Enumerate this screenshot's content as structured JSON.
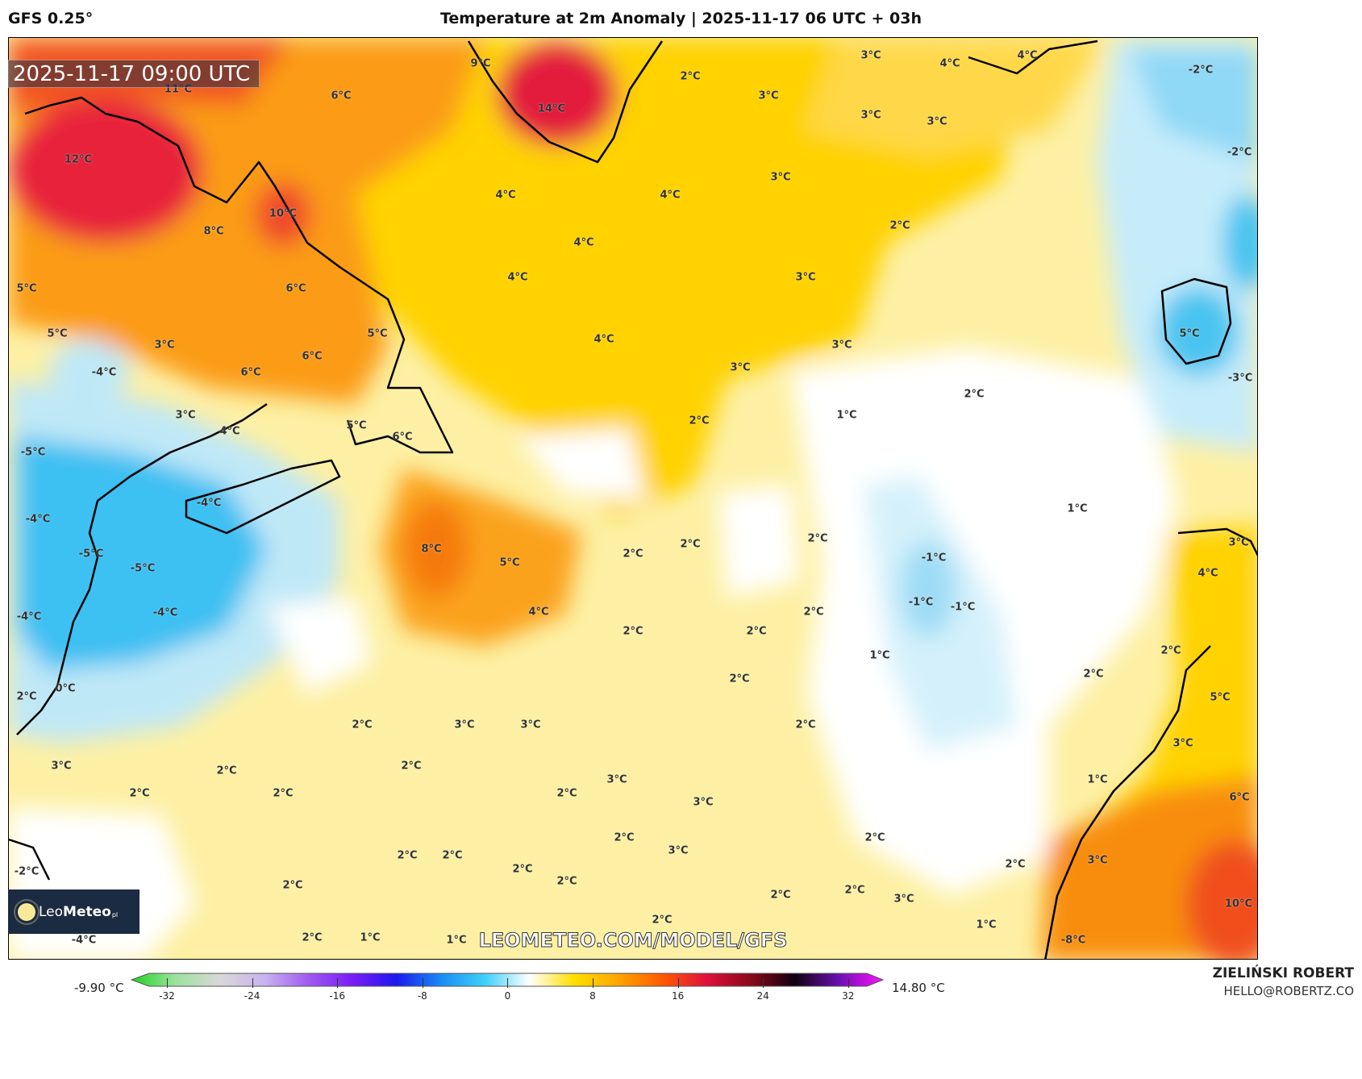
{
  "header": {
    "model": "GFS 0.25°",
    "title": "Temperature at 2m Anomaly | 2025-11-17 06 UTC + 03h"
  },
  "map": {
    "valid_time": "2025-11-17 09:00 UTC",
    "watermark": "LEOMETEO.COM/MODEL/GFS",
    "logo": {
      "name_light": "Leo",
      "name_bold": "Meteo",
      "suffix": "pl"
    },
    "contour_labels": [
      "11°C",
      "6°C",
      "12°C",
      "14°C",
      "9°C",
      "2°C",
      "3°C",
      "4°C",
      "4°C",
      "-2°C",
      "3°C",
      "3°C",
      "3°C",
      "-2°C",
      "3°C",
      "4°C",
      "4°C",
      "10°C",
      "8°C",
      "2°C",
      "4°C",
      "4°C",
      "6°C",
      "3°C",
      "5°C",
      "5°C",
      "5°C",
      "4°C",
      "3°C",
      "6°C",
      "3°C",
      "3°C",
      "-4°C",
      "6°C",
      "5°C",
      "-3°C",
      "2°C",
      "3°C",
      "1°C",
      "2°C",
      "4°C",
      "5°C",
      "6°C",
      "-5°C",
      "-4°C",
      "-4°C",
      "1°C",
      "-5°C",
      "8°C",
      "2°C",
      "2°C",
      "2°C",
      "5°C",
      "-1°C",
      "3°C",
      "-5°C",
      "4°C",
      "-4°C",
      "4°C",
      "-1°C",
      "-1°C",
      "2°C",
      "-4°C",
      "2°C",
      "2°C",
      "1°C",
      "2°C",
      "2°C",
      "2°C",
      "2°C",
      "0°C",
      "5°C",
      "2°C",
      "3°C",
      "3°C",
      "2°C",
      "3°C",
      "3°C",
      "2°C",
      "2°C",
      "1°C",
      "2°C",
      "2°C",
      "3°C",
      "2°C",
      "3°C",
      "6°C",
      "2°C",
      "2°C",
      "3°C",
      "2°C",
      "2°C",
      "2°C",
      "3°C",
      "2°C",
      "-2°C",
      "2°C",
      "2°C",
      "2°C",
      "2°C",
      "3°C",
      "10°C",
      "2°C",
      "1°C",
      "-4°C",
      "2°C",
      "1°C",
      "1°C",
      "-8°C"
    ]
  },
  "colorbar": {
    "min_label": "-9.90 °C",
    "max_label": "14.80 °C",
    "ticks": [
      "-32",
      "-24",
      "-16",
      "-8",
      "0",
      "8",
      "16",
      "24",
      "32"
    ],
    "colors": [
      "#1fd31f",
      "#9ee29e",
      "#d8d8d8",
      "#c9b4ee",
      "#a05af0",
      "#7a1cf5",
      "#1a1aee",
      "#1a8cf5",
      "#3fd0f8",
      "#ffffff",
      "#ffe000",
      "#ffa500",
      "#ff5a00",
      "#e0103c",
      "#8a0a1a",
      "#100010",
      "#6a10b0",
      "#ff10ff"
    ]
  },
  "footer": {
    "author": "ZIELIŃSKI ROBERT",
    "email": "HELLO@ROBERTZ.CO"
  }
}
